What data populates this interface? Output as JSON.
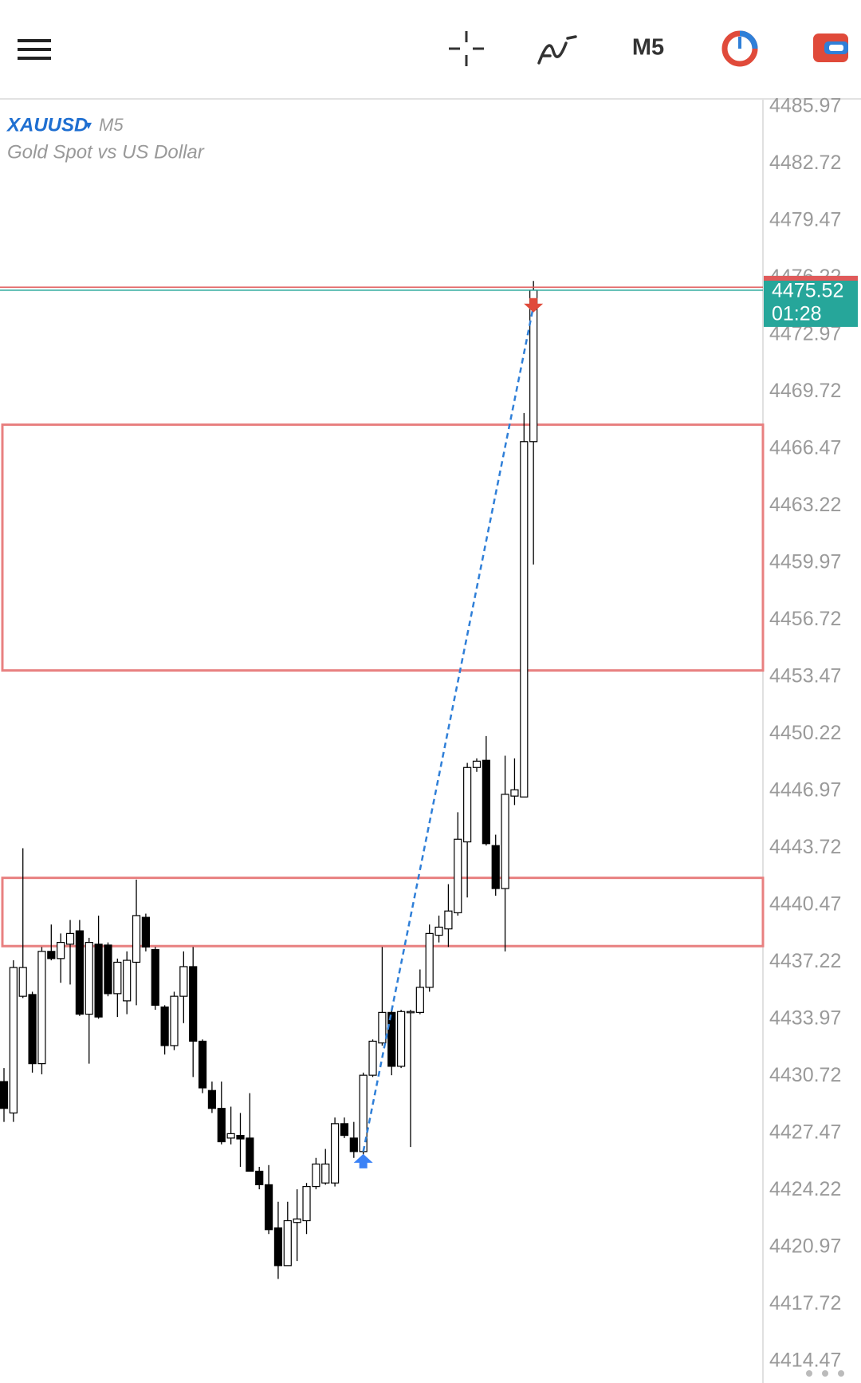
{
  "toolbar": {
    "timeframe": "M5"
  },
  "chart_data": {
    "type": "candlestick",
    "symbol": "XAUUSD",
    "timeframe": "M5",
    "subtitle": "Gold Spot vs US Dollar",
    "open": [
      4430.42,
      4428.63,
      4435.28,
      4435.38,
      4431.44,
      4437.84,
      4437.43,
      4438.25,
      4439.01,
      4434.26,
      4438.25,
      4438.2,
      4435.43,
      4435.02,
      4437.22,
      4439.78,
      4437.94,
      4434.67,
      4432.47,
      4435.28,
      4436.97,
      4432.72,
      4429.91,
      4428.89,
      4427.2,
      4427.35,
      4427.2,
      4425.31,
      4424.54,
      4422.08,
      4419.93,
      4422.39,
      4422.49,
      4424.44,
      4424.64,
      4424.64,
      4428.02,
      4427.2,
      4426.43,
      4430.78,
      4432.62,
      4434.36,
      4431.29,
      4434.36,
      4434.36,
      4435.79,
      4438.76,
      4439.12,
      4440.04,
      4444.08,
      4448.32,
      4448.73,
      4443.87,
      4441.42,
      4446.69,
      4446.64,
      4466.89
    ],
    "high": [
      4431.19,
      4437.33,
      4443.72,
      4435.54,
      4438.09,
      4439.37,
      4438.86,
      4439.63,
      4439.63,
      4438.61,
      4439.88,
      4438.35,
      4437.43,
      4437.84,
      4441.93,
      4439.99,
      4438.09,
      4434.77,
      4435.54,
      4437.84,
      4438.09,
      4432.82,
      4430.42,
      4430.42,
      4428.99,
      4428.63,
      4429.76,
      4425.56,
      4425.66,
      4423.57,
      4423.57,
      4424.28,
      4424.64,
      4426.07,
      4426.58,
      4428.37,
      4428.37,
      4428.12,
      4430.93,
      4432.82,
      4438.09,
      4434.51,
      4434.51,
      4434.51,
      4436.81,
      4439.37,
      4439.88,
      4441.67,
      4445.77,
      4448.58,
      4448.84,
      4450.11,
      4444.49,
      4448.99,
      4448.84,
      4468.52,
      4476.05
    ],
    "low": [
      4428.12,
      4428.12,
      4435.18,
      4430.93,
      4430.83,
      4437.33,
      4436.05,
      4435.95,
      4434.16,
      4431.44,
      4434.0,
      4435.28,
      4434.1,
      4434.26,
      4434.77,
      4437.84,
      4434.51,
      4431.96,
      4432.21,
      4433.75,
      4430.68,
      4429.76,
      4428.63,
      4426.84,
      4426.84,
      4425.56,
      4425.31,
      4424.28,
      4421.73,
      4419.17,
      4419.93,
      4420.19,
      4421.73,
      4424.28,
      4424.54,
      4424.44,
      4427.2,
      4426.07,
      4426.07,
      4430.68,
      4432.47,
      4430.78,
      4431.19,
      4426.69,
      4434.26,
      4435.54,
      4438.35,
      4438.09,
      4439.88,
      4440.91,
      4448.07,
      4443.87,
      4441.01,
      4437.84,
      4446.18,
      4446.64,
      4459.89
    ],
    "close": [
      4428.89,
      4436.92,
      4436.92,
      4431.44,
      4437.84,
      4437.43,
      4438.35,
      4438.86,
      4434.26,
      4438.35,
      4434.1,
      4435.43,
      4437.22,
      4437.33,
      4439.88,
      4438.09,
      4434.77,
      4432.47,
      4435.28,
      4436.97,
      4432.72,
      4430.06,
      4428.89,
      4426.99,
      4427.45,
      4427.15,
      4425.31,
      4424.54,
      4421.98,
      4419.93,
      4422.49,
      4422.59,
      4424.44,
      4425.72,
      4425.72,
      4428.02,
      4427.35,
      4426.43,
      4430.78,
      4432.72,
      4434.36,
      4431.29,
      4434.41,
      4434.41,
      4435.79,
      4438.86,
      4439.22,
      4440.14,
      4444.23,
      4448.32,
      4448.68,
      4443.98,
      4441.42,
      4446.79,
      4447.05,
      4466.89,
      4475.52
    ],
    "up_color": "#ffffff",
    "down_color": "#000000",
    "ylim": [
      4413.24,
      4486.38
    ],
    "yticks": [
      4485.97,
      4482.72,
      4479.47,
      4476.22,
      4472.97,
      4469.72,
      4466.47,
      4463.22,
      4459.97,
      4456.72,
      4453.47,
      4450.22,
      4446.97,
      4443.72,
      4440.47,
      4437.22,
      4433.97,
      4430.72,
      4427.47,
      4424.22,
      4420.97,
      4417.72,
      4414.47
    ],
    "grid": false,
    "bid": 4475.52,
    "ask": 4475.69,
    "bid_color": "#26a69a",
    "ask_color": "#e05a5a",
    "countdown": "01:28",
    "zones": [
      {
        "top": 4467.86,
        "bottom": 4453.85
      },
      {
        "top": 4442.03,
        "bottom": 4438.14
      }
    ],
    "zone_color": "#e88080",
    "trade": {
      "open_price": 4426.43,
      "close_price": 4474.62
    }
  }
}
